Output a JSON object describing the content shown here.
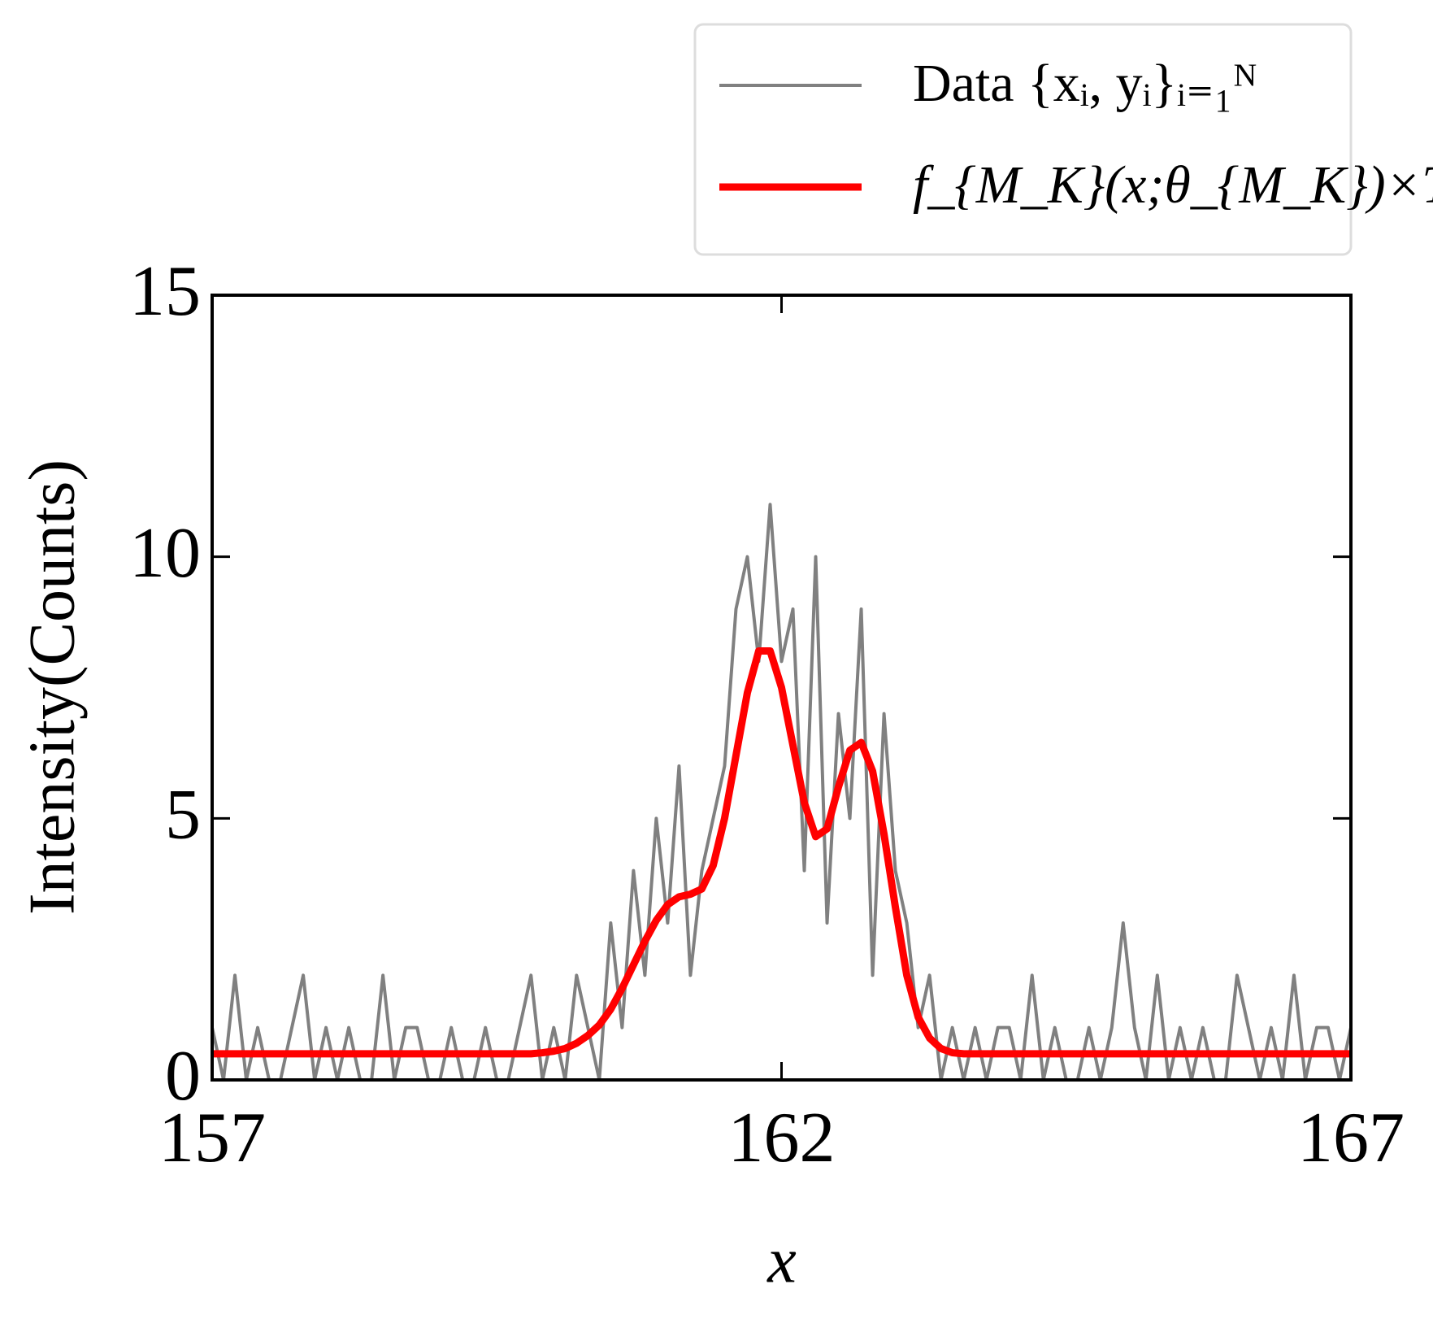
{
  "chart_data": {
    "type": "line",
    "x_label": "x",
    "y_label": "Intensity(Counts)",
    "xlim": [
      157,
      167
    ],
    "ylim": [
      0,
      15
    ],
    "xticks": [
      157,
      162,
      167
    ],
    "yticks": [
      0,
      5,
      10,
      15
    ],
    "legend": "top-right",
    "x": [
      157.0,
      157.1,
      157.2,
      157.3,
      157.4,
      157.5,
      157.6,
      157.7,
      157.8,
      157.9,
      158.0,
      158.1,
      158.2,
      158.3,
      158.4,
      158.5,
      158.6,
      158.7,
      158.8,
      158.9,
      159.0,
      159.1,
      159.2,
      159.3,
      159.4,
      159.5,
      159.6,
      159.7,
      159.8,
      159.9,
      160.0,
      160.1,
      160.2,
      160.3,
      160.4,
      160.5,
      160.6,
      160.7,
      160.8,
      160.9,
      161.0,
      161.1,
      161.2,
      161.3,
      161.4,
      161.5,
      161.6,
      161.7,
      161.8,
      161.9,
      162.0,
      162.1,
      162.2,
      162.3,
      162.4,
      162.5,
      162.6,
      162.7,
      162.8,
      162.9,
      163.0,
      163.1,
      163.2,
      163.3,
      163.4,
      163.5,
      163.6,
      163.7,
      163.8,
      163.9,
      164.0,
      164.1,
      164.2,
      164.3,
      164.4,
      164.5,
      164.6,
      164.7,
      164.8,
      164.9,
      165.0,
      165.1,
      165.2,
      165.3,
      165.4,
      165.5,
      165.6,
      165.7,
      165.8,
      165.9,
      166.0,
      166.1,
      166.2,
      166.3,
      166.4,
      166.5,
      166.6,
      166.7,
      166.8,
      166.9,
      167.0
    ],
    "series": [
      {
        "name": "Data {xᵢ, yᵢ}ᵢ₌₁ᴺ",
        "color": "#808080",
        "width": 4,
        "values": [
          1,
          0,
          2,
          0,
          1,
          0,
          0,
          1,
          2,
          0,
          1,
          0,
          1,
          0,
          0,
          2,
          0,
          1,
          1,
          0,
          0,
          1,
          0,
          0,
          1,
          0,
          0,
          1,
          2,
          0,
          1,
          0,
          2,
          1,
          0,
          3,
          1,
          4,
          2,
          5,
          3,
          6,
          2,
          4,
          5,
          6,
          9,
          10,
          8,
          11,
          8,
          9,
          4,
          10,
          3,
          7,
          5,
          9,
          2,
          7,
          4,
          3,
          1,
          2,
          0,
          1,
          0,
          1,
          0,
          1,
          1,
          0,
          2,
          0,
          1,
          0,
          0,
          1,
          0,
          1,
          3,
          1,
          0,
          2,
          0,
          1,
          0,
          1,
          0,
          0,
          2,
          1,
          0,
          1,
          0,
          2,
          0,
          1,
          1,
          0,
          1
        ]
      },
      {
        "name": "f_{M_K}(x;θ_{M_K})×T",
        "color": "#ff0000",
        "width": 9,
        "values": [
          0.5,
          0.5,
          0.5,
          0.5,
          0.5,
          0.5,
          0.5,
          0.5,
          0.5,
          0.5,
          0.5,
          0.5,
          0.5,
          0.5,
          0.5,
          0.5,
          0.5,
          0.5,
          0.5,
          0.5,
          0.5,
          0.5,
          0.5,
          0.5,
          0.5,
          0.5,
          0.5,
          0.5,
          0.5,
          0.52,
          0.55,
          0.6,
          0.7,
          0.85,
          1.05,
          1.35,
          1.75,
          2.2,
          2.65,
          3.05,
          3.35,
          3.5,
          3.55,
          3.65,
          4.1,
          5.0,
          6.2,
          7.4,
          8.2,
          8.2,
          7.5,
          6.4,
          5.3,
          4.65,
          4.8,
          5.6,
          6.3,
          6.45,
          5.9,
          4.7,
          3.3,
          2.0,
          1.2,
          0.8,
          0.6,
          0.52,
          0.5,
          0.5,
          0.5,
          0.5,
          0.5,
          0.5,
          0.5,
          0.5,
          0.5,
          0.5,
          0.5,
          0.5,
          0.5,
          0.5,
          0.5,
          0.5,
          0.5,
          0.5,
          0.5,
          0.5,
          0.5,
          0.5,
          0.5,
          0.5,
          0.5,
          0.5,
          0.5,
          0.5,
          0.5,
          0.5,
          0.5,
          0.5,
          0.5,
          0.5,
          0.5
        ]
      }
    ]
  }
}
